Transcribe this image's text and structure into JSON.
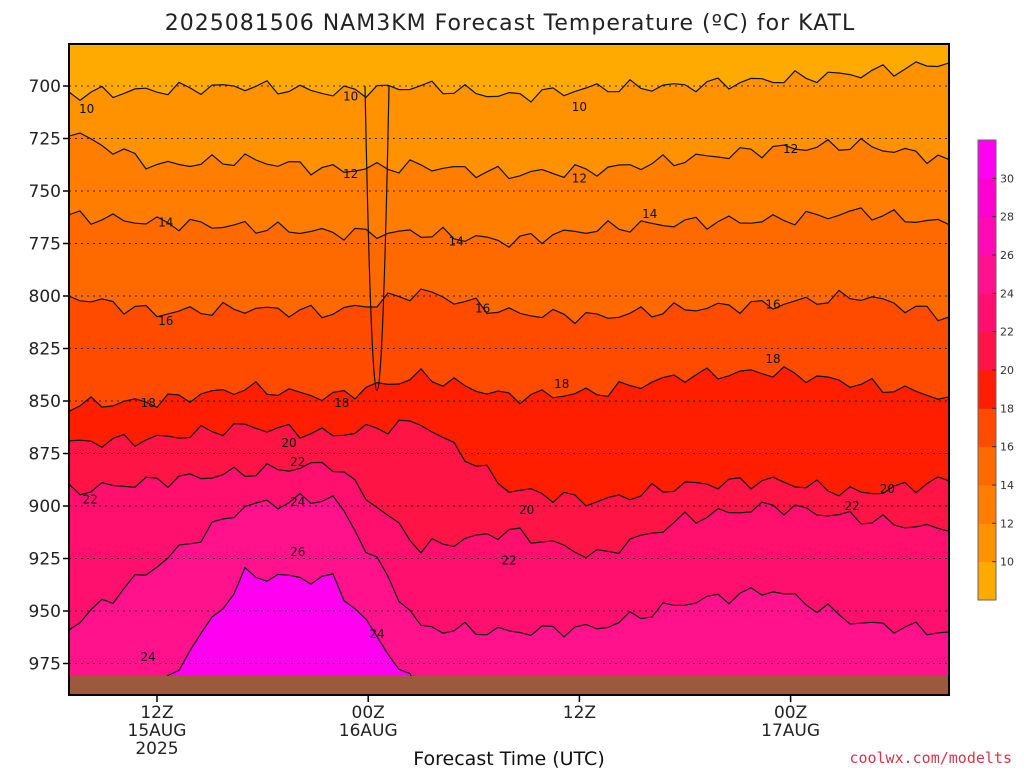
{
  "title": "2025081506 NAM3KM Forecast Temperature (ºC) for KATL",
  "credit": "coolwx.com/modelts",
  "chart_data": {
    "type": "contour",
    "title": "2025081506 NAM3KM Forecast Temperature (ºC) for KATL",
    "xlabel": "Forecast Time (UTC)",
    "ylabel": "",
    "y_scale": "pressure (hPa), inverted",
    "ylim": [
      990,
      680
    ],
    "y_ticks": [
      700,
      725,
      750,
      775,
      800,
      825,
      850,
      875,
      900,
      925,
      950,
      975
    ],
    "x_range_hours": [
      7,
      57
    ],
    "x_ticks": [
      {
        "hour": 12,
        "lines": [
          "12Z",
          "15AUG",
          "2025"
        ]
      },
      {
        "hour": 24,
        "lines": [
          "00Z",
          "16AUG"
        ]
      },
      {
        "hour": 36,
        "lines": [
          "12Z"
        ]
      },
      {
        "hour": 48,
        "lines": [
          "00Z",
          "17AUG"
        ]
      },
      {
        "hour": 60,
        "lines": [
          "12Z"
        ]
      }
    ],
    "grid": "dotted horizontal at y ticks",
    "legend": "colorbar right",
    "colorbar": {
      "ticks": [
        10,
        12,
        14,
        16,
        18,
        20,
        22,
        24,
        26,
        28,
        30
      ],
      "colors": [
        "#ffaa00",
        "#ff9200",
        "#ff7d00",
        "#ff6a00",
        "#ff4b00",
        "#ff1e00",
        "#ff1446",
        "#ff0f6e",
        "#ff128c",
        "#ff0ab4",
        "#ff00d2",
        "#ff00f0"
      ]
    },
    "contour_levels": [
      10,
      12,
      14,
      16,
      18,
      20,
      22,
      24,
      26
    ],
    "surface_color": "#9c5a3c",
    "series": [
      {
        "level": 10,
        "pressure": [
          704,
          702,
          700,
          703,
          700,
          705,
          701,
          700,
          697,
          694,
          689
        ]
      },
      {
        "level": 12,
        "pressure": [
          722,
          738,
          735,
          740,
          738,
          742,
          740,
          735,
          730,
          728,
          735
        ]
      },
      {
        "level": 14,
        "pressure": [
          762,
          765,
          767,
          770,
          770,
          774,
          768,
          765,
          764,
          760,
          766
        ]
      },
      {
        "level": 16,
        "pressure": [
          800,
          808,
          806,
          808,
          798,
          808,
          810,
          806,
          804,
          800,
          810
        ]
      },
      {
        "level": 18,
        "pressure": [
          852,
          850,
          844,
          848,
          838,
          848,
          846,
          838,
          836,
          842,
          848
        ]
      },
      {
        "level": 20,
        "pressure": [
          870,
          868,
          862,
          866,
          860,
          892,
          898,
          890,
          888,
          894,
          888
        ]
      },
      {
        "level": 22,
        "pressure": [
          893,
          888,
          884,
          880,
          920,
          912,
          924,
          906,
          900,
          906,
          912
        ]
      },
      {
        "level": 24,
        "pressure": [
          958,
          928,
          900,
          896,
          958,
          960,
          958,
          946,
          940,
          956,
          960
        ]
      },
      {
        "level": 26,
        "pressure": [
          990,
          990,
          933,
          935,
          990,
          990,
          990,
          988,
          990,
          990,
          990
        ]
      }
    ],
    "contour_labels": [
      {
        "text": "10",
        "hour": 8.0,
        "pressure": 711
      },
      {
        "text": "10",
        "hour": 23.0,
        "pressure": 705
      },
      {
        "text": "10",
        "hour": 36.0,
        "pressure": 710
      },
      {
        "text": "12",
        "hour": 23.0,
        "pressure": 742
      },
      {
        "text": "12",
        "hour": 36.0,
        "pressure": 744
      },
      {
        "text": "12",
        "hour": 48.0,
        "pressure": 730
      },
      {
        "text": "14",
        "hour": 12.5,
        "pressure": 765
      },
      {
        "text": "14",
        "hour": 29.0,
        "pressure": 774
      },
      {
        "text": "14",
        "hour": 40.0,
        "pressure": 761
      },
      {
        "text": "16",
        "hour": 12.5,
        "pressure": 812
      },
      {
        "text": "16",
        "hour": 30.5,
        "pressure": 806
      },
      {
        "text": "16",
        "hour": 47.0,
        "pressure": 804
      },
      {
        "text": "18",
        "hour": 11.5,
        "pressure": 851
      },
      {
        "text": "18",
        "hour": 22.5,
        "pressure": 851
      },
      {
        "text": "18",
        "hour": 35.0,
        "pressure": 842
      },
      {
        "text": "18",
        "hour": 47.0,
        "pressure": 830
      },
      {
        "text": "20",
        "hour": 19.5,
        "pressure": 870
      },
      {
        "text": "20",
        "hour": 33.0,
        "pressure": 902
      },
      {
        "text": "20",
        "hour": 53.5,
        "pressure": 892
      },
      {
        "text": "22",
        "hour": 8.2,
        "pressure": 897
      },
      {
        "text": "22",
        "hour": 20.0,
        "pressure": 879
      },
      {
        "text": "22",
        "hour": 32.0,
        "pressure": 926
      },
      {
        "text": "22",
        "hour": 51.5,
        "pressure": 900
      },
      {
        "text": "24",
        "hour": 20.0,
        "pressure": 898
      },
      {
        "text": "24",
        "hour": 24.5,
        "pressure": 961
      },
      {
        "text": "24",
        "hour": 11.5,
        "pressure": 972
      },
      {
        "text": "26",
        "hour": 20.0,
        "pressure": 922
      }
    ]
  }
}
